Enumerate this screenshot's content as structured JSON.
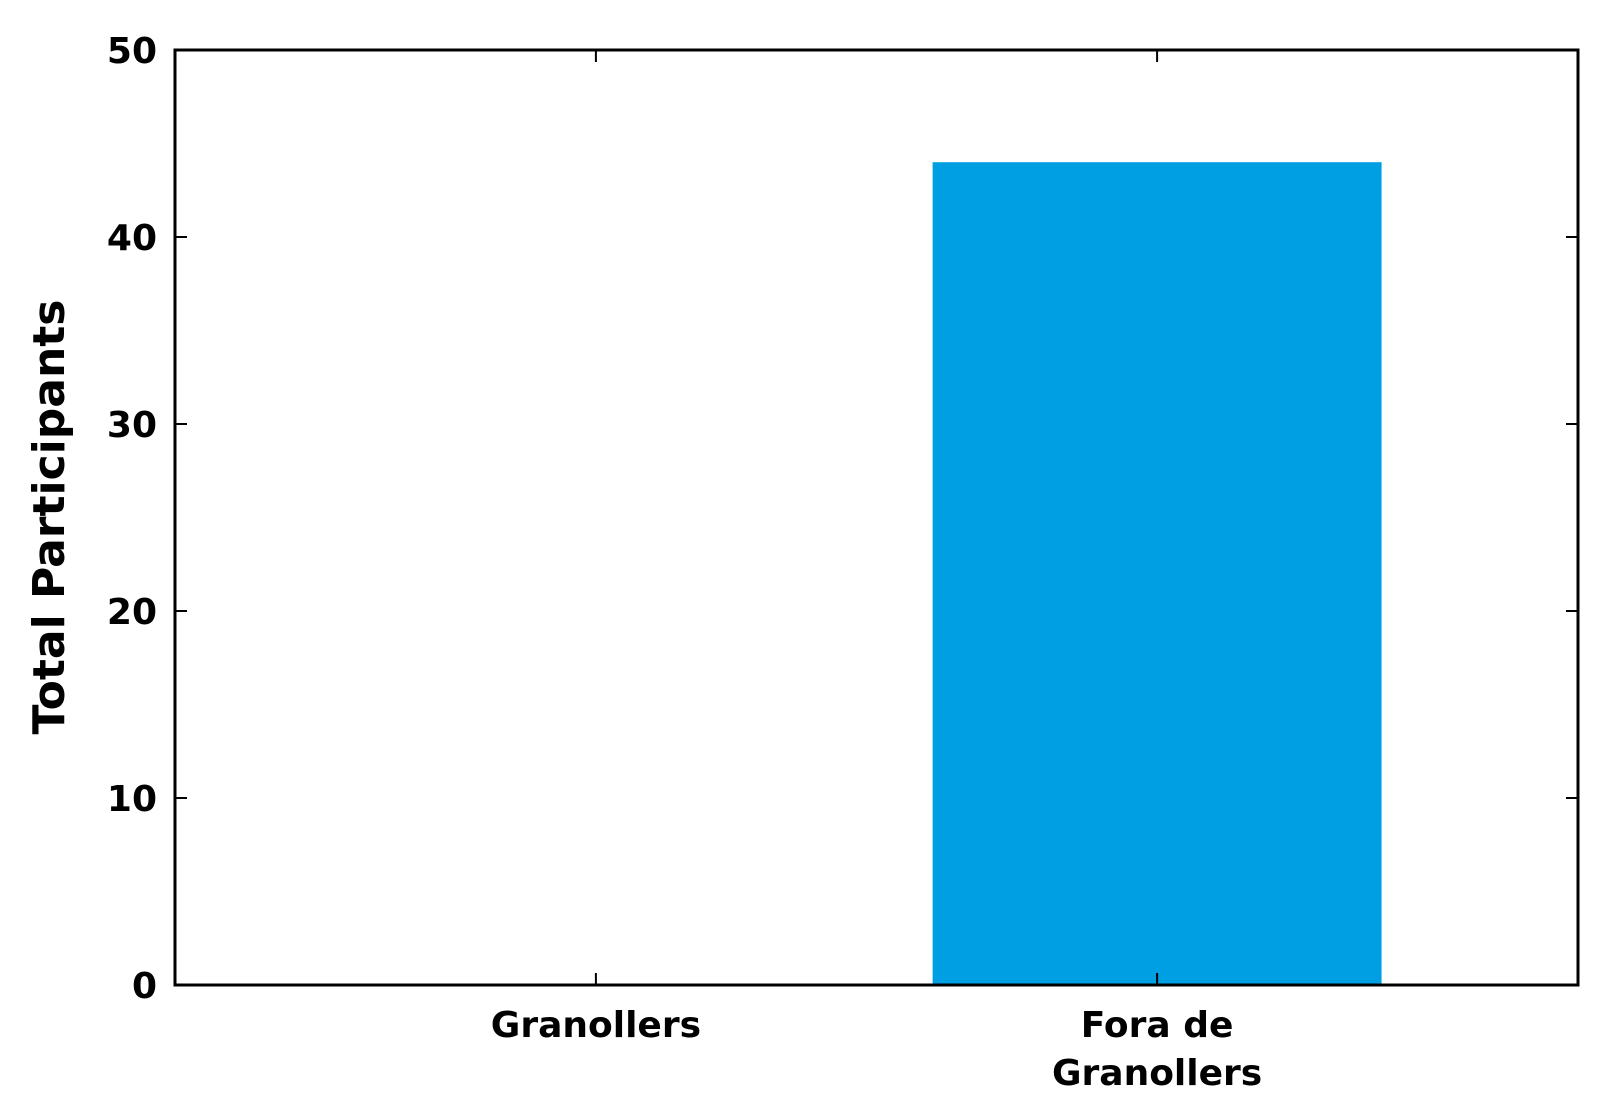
{
  "chart_data": {
    "type": "bar",
    "categories": [
      "Granollers",
      "Fora de\nGranollers"
    ],
    "values": [
      0,
      44
    ],
    "xlabel": "",
    "ylabel": "Total Participants",
    "ylim": [
      0,
      50
    ],
    "yticks": [
      "0",
      "10",
      "20",
      "30",
      "40",
      "50"
    ],
    "bar_color": "#009fe3",
    "grid": false
  }
}
